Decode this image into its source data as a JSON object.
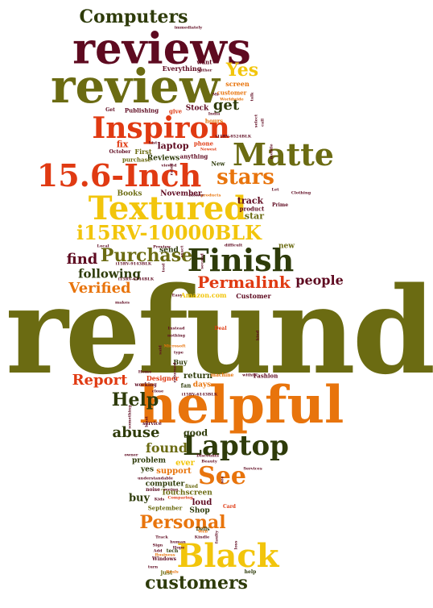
{
  "palette": {
    "olive": "#6b6b12",
    "maroon": "#5e0a20",
    "orange": "#e8740c",
    "red": "#e03a12",
    "yellow": "#f2c50c",
    "forest": "#2e3b0a"
  },
  "words": [
    {
      "text": "refund",
      "color": "olive"
    },
    {
      "text": "helpful",
      "color": "orange"
    },
    {
      "text": "review",
      "color": "olive"
    },
    {
      "text": "reviews",
      "color": "maroon"
    },
    {
      "text": "Inspiron",
      "color": "red"
    },
    {
      "text": "Matte",
      "color": "olive"
    },
    {
      "text": "15.6-Inch",
      "color": "red"
    },
    {
      "text": "Textured",
      "color": "yellow"
    },
    {
      "text": "i15RV-10000BLK",
      "color": "yellow"
    },
    {
      "text": "Finish",
      "color": "forest"
    },
    {
      "text": "Laptop",
      "color": "forest"
    },
    {
      "text": "Black",
      "color": "yellow"
    },
    {
      "text": "See",
      "color": "orange"
    },
    {
      "text": "Purchase",
      "color": "olive"
    },
    {
      "text": "stars",
      "color": "orange"
    },
    {
      "text": "Computers",
      "color": "forest"
    },
    {
      "text": "Personal",
      "color": "orange"
    },
    {
      "text": "customers",
      "color": "forest"
    },
    {
      "text": "Yes",
      "color": "yellow"
    },
    {
      "text": "Help",
      "color": "forest"
    },
    {
      "text": "Report",
      "color": "red"
    },
    {
      "text": "Verified",
      "color": "orange"
    },
    {
      "text": "find",
      "color": "maroon"
    },
    {
      "text": "get",
      "color": "forest"
    },
    {
      "text": "Permalink",
      "color": "red"
    },
    {
      "text": "people",
      "color": "maroon"
    },
    {
      "text": "abuse",
      "color": "forest"
    },
    {
      "text": "found",
      "color": "olive"
    },
    {
      "text": "following",
      "color": "forest"
    },
    {
      "text": "Everything",
      "color": "maroon"
    },
    {
      "text": "want",
      "color": "maroon"
    },
    {
      "text": "screen",
      "color": "orange"
    },
    {
      "text": "either",
      "color": "maroon"
    },
    {
      "text": "customer",
      "color": "orange"
    },
    {
      "text": "Get",
      "color": "maroon"
    },
    {
      "text": "Publishing",
      "color": "maroon"
    },
    {
      "text": "give",
      "color": "red"
    },
    {
      "text": "Stock",
      "color": "maroon"
    },
    {
      "text": "Books",
      "color": "olive"
    },
    {
      "text": "November",
      "color": "maroon"
    },
    {
      "text": "track",
      "color": "maroon"
    },
    {
      "text": "star",
      "color": "olive"
    },
    {
      "text": "product",
      "color": "maroon"
    },
    {
      "text": "Prime",
      "color": "maroon"
    },
    {
      "text": "Clothing",
      "color": "maroon"
    },
    {
      "text": "laptop",
      "color": "maroon"
    },
    {
      "text": "phone",
      "color": "red"
    },
    {
      "text": "Reviews",
      "color": "forest"
    },
    {
      "text": "anything",
      "color": "maroon"
    },
    {
      "text": "New",
      "color": "forest"
    },
    {
      "text": "fix",
      "color": "red"
    },
    {
      "text": "October",
      "color": "maroon"
    },
    {
      "text": "First",
      "color": "olive"
    },
    {
      "text": "purchase",
      "color": "olive"
    },
    {
      "text": "hours",
      "color": "orange"
    },
    {
      "text": "send",
      "color": "forest"
    },
    {
      "text": "new",
      "color": "olive"
    },
    {
      "text": "Local",
      "color": "maroon"
    },
    {
      "text": "Preview",
      "color": "maroon"
    },
    {
      "text": "Amazon.com",
      "color": "yellow"
    },
    {
      "text": "Customer",
      "color": "maroon"
    },
    {
      "text": "Easy",
      "color": "maroon"
    },
    {
      "text": "days",
      "color": "orange"
    },
    {
      "text": "fan",
      "color": "forest"
    },
    {
      "text": "return",
      "color": "forest"
    },
    {
      "text": "machine",
      "color": "orange"
    },
    {
      "text": "Fashion",
      "color": "maroon"
    },
    {
      "text": "Designer",
      "color": "red"
    },
    {
      "text": "working",
      "color": "maroon"
    },
    {
      "text": "Buy",
      "color": "forest"
    },
    {
      "text": "Deal",
      "color": "red"
    },
    {
      "text": "good",
      "color": "forest"
    },
    {
      "text": "ever",
      "color": "yellow"
    },
    {
      "text": "support",
      "color": "orange"
    },
    {
      "text": "service",
      "color": "maroon"
    },
    {
      "text": "problem",
      "color": "forest"
    },
    {
      "text": "yes",
      "color": "forest"
    },
    {
      "text": "buy",
      "color": "forest"
    },
    {
      "text": "noise",
      "color": "maroon"
    },
    {
      "text": "computer",
      "color": "forest"
    },
    {
      "text": "fixed",
      "color": "olive"
    },
    {
      "text": "Touchscreen",
      "color": "olive"
    },
    {
      "text": "loud",
      "color": "maroon"
    },
    {
      "text": "September",
      "color": "olive"
    },
    {
      "text": "Shop",
      "color": "forest"
    },
    {
      "text": "Card",
      "color": "red"
    },
    {
      "text": "Services",
      "color": "maroon"
    },
    {
      "text": "Windows",
      "color": "maroon"
    },
    {
      "text": "tech",
      "color": "forest"
    },
    {
      "text": "just",
      "color": "olive"
    },
    {
      "text": "Deals",
      "color": "orange"
    },
    {
      "text": "help",
      "color": "forest"
    },
    {
      "text": "Dells",
      "color": "forest"
    },
    {
      "text": "Kindle",
      "color": "maroon"
    },
    {
      "text": "human",
      "color": "maroon"
    },
    {
      "text": "Track",
      "color": "maroon"
    },
    {
      "text": "Web",
      "color": "orange"
    },
    {
      "text": "Hope",
      "color": "maroon"
    },
    {
      "text": "immediately",
      "color": "maroon"
    },
    {
      "text": "Microsoft",
      "color": "orange"
    },
    {
      "text": "nothing",
      "color": "maroon"
    },
    {
      "text": "Instead",
      "color": "maroon"
    },
    {
      "text": "type",
      "color": "maroon"
    },
    {
      "text": "Home",
      "color": "maroon"
    },
    {
      "text": "i15RV-8524BLK",
      "color": "maroon"
    },
    {
      "text": "i15RV-6143BLK",
      "color": "maroon"
    },
    {
      "text": "i15RV-9143BLK",
      "color": "maroon"
    },
    {
      "text": "i15RV-6144BLK",
      "color": "maroon"
    },
    {
      "text": "Mr",
      "color": "maroon"
    },
    {
      "text": "List",
      "color": "maroon"
    },
    {
      "text": "products",
      "color": "orange"
    },
    {
      "text": "blower",
      "color": "maroon"
    },
    {
      "text": "Let",
      "color": "maroon"
    },
    {
      "text": "Newest",
      "color": "red"
    },
    {
      "text": "viewed",
      "color": "maroon"
    },
    {
      "text": "Beauty",
      "color": "maroon"
    },
    {
      "text": "Discounts",
      "color": "maroon"
    },
    {
      "text": "understandable",
      "color": "maroon"
    },
    {
      "text": "owner",
      "color": "maroon"
    },
    {
      "text": "Kids",
      "color": "maroon"
    },
    {
      "text": "Comparing",
      "color": "red"
    },
    {
      "text": "seeing",
      "color": "maroon"
    },
    {
      "text": "Business",
      "color": "orange"
    },
    {
      "text": "turn",
      "color": "maroon"
    },
    {
      "text": "Sign",
      "color": "maroon"
    },
    {
      "text": "Add",
      "color": "maroon"
    },
    {
      "text": "within",
      "color": "maroon"
    },
    {
      "text": "difficult",
      "color": "maroon"
    },
    {
      "text": "India",
      "color": "maroon"
    },
    {
      "text": "Worldwide",
      "color": "orange"
    },
    {
      "text": "makes",
      "color": "maroon"
    },
    {
      "text": "close",
      "color": "maroon"
    },
    {
      "text": "call",
      "color": "maroon"
    },
    {
      "text": "rated",
      "color": "maroon"
    },
    {
      "text": "tool",
      "color": "maroon"
    },
    {
      "text": "second",
      "color": "maroon"
    },
    {
      "text": "exact",
      "color": "maroon"
    },
    {
      "text": "mobile",
      "color": "maroon"
    },
    {
      "text": "talk",
      "color": "maroon"
    },
    {
      "text": "select",
      "color": "maroon"
    },
    {
      "text": "said",
      "color": "maroon"
    },
    {
      "text": "kind",
      "color": "maroon"
    },
    {
      "text": "loss",
      "color": "maroon"
    },
    {
      "text": "see",
      "color": "maroon"
    },
    {
      "text": "faulty",
      "color": "maroon"
    },
    {
      "text": "something",
      "color": "maroon"
    },
    {
      "text": "returned",
      "color": "maroon"
    },
    {
      "text": "least",
      "color": "maroon"
    }
  ]
}
